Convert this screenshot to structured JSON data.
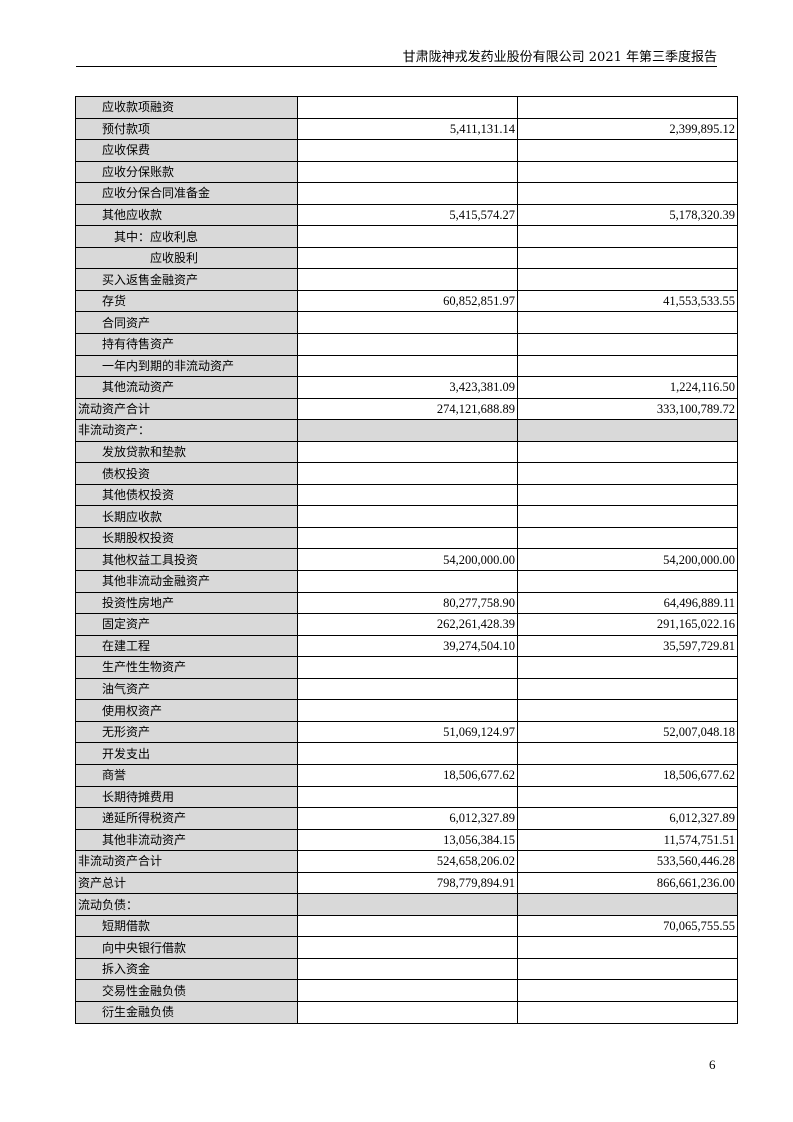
{
  "header": {
    "title": "甘肃陇神戎发药业股份有限公司 2021 年第三季度报告"
  },
  "rows": [
    {
      "label": "应收款项融资",
      "indent": 2,
      "end": "",
      "begin": ""
    },
    {
      "label": "预付款项",
      "indent": 2,
      "end": "5,411,131.14",
      "begin": "2,399,895.12"
    },
    {
      "label": "应收保费",
      "indent": 2,
      "end": "",
      "begin": ""
    },
    {
      "label": "应收分保账款",
      "indent": 2,
      "end": "",
      "begin": ""
    },
    {
      "label": "应收分保合同准备金",
      "indent": 2,
      "end": "",
      "begin": ""
    },
    {
      "label": "其他应收款",
      "indent": 2,
      "end": "5,415,574.27",
      "begin": "5,178,320.39"
    },
    {
      "label": "其中：应收利息",
      "indent": 3,
      "end": "",
      "begin": ""
    },
    {
      "label": "应收股利",
      "indent": 6,
      "end": "",
      "begin": ""
    },
    {
      "label": "买入返售金融资产",
      "indent": 2,
      "end": "",
      "begin": ""
    },
    {
      "label": "存货",
      "indent": 2,
      "end": "60,852,851.97",
      "begin": "41,553,533.55"
    },
    {
      "label": "合同资产",
      "indent": 2,
      "end": "",
      "begin": ""
    },
    {
      "label": "持有待售资产",
      "indent": 2,
      "end": "",
      "begin": ""
    },
    {
      "label": "一年内到期的非流动资产",
      "indent": 2,
      "end": "",
      "begin": ""
    },
    {
      "label": "其他流动资产",
      "indent": 2,
      "end": "3,423,381.09",
      "begin": "1,224,116.50"
    },
    {
      "label": "流动资产合计",
      "indent": 0,
      "end": "274,121,688.89",
      "begin": "333,100,789.72"
    },
    {
      "label": "非流动资产：",
      "indent": 0,
      "end": "",
      "begin": "",
      "section": true
    },
    {
      "label": "发放贷款和垫款",
      "indent": 2,
      "end": "",
      "begin": ""
    },
    {
      "label": "债权投资",
      "indent": 2,
      "end": "",
      "begin": ""
    },
    {
      "label": "其他债权投资",
      "indent": 2,
      "end": "",
      "begin": ""
    },
    {
      "label": "长期应收款",
      "indent": 2,
      "end": "",
      "begin": ""
    },
    {
      "label": "长期股权投资",
      "indent": 2,
      "end": "",
      "begin": ""
    },
    {
      "label": "其他权益工具投资",
      "indent": 2,
      "end": "54,200,000.00",
      "begin": "54,200,000.00"
    },
    {
      "label": "其他非流动金融资产",
      "indent": 2,
      "end": "",
      "begin": ""
    },
    {
      "label": "投资性房地产",
      "indent": 2,
      "end": "80,277,758.90",
      "begin": "64,496,889.11"
    },
    {
      "label": "固定资产",
      "indent": 2,
      "end": "262,261,428.39",
      "begin": "291,165,022.16"
    },
    {
      "label": "在建工程",
      "indent": 2,
      "end": "39,274,504.10",
      "begin": "35,597,729.81"
    },
    {
      "label": "生产性生物资产",
      "indent": 2,
      "end": "",
      "begin": ""
    },
    {
      "label": "油气资产",
      "indent": 2,
      "end": "",
      "begin": ""
    },
    {
      "label": "使用权资产",
      "indent": 2,
      "end": "",
      "begin": ""
    },
    {
      "label": "无形资产",
      "indent": 2,
      "end": "51,069,124.97",
      "begin": "52,007,048.18"
    },
    {
      "label": "开发支出",
      "indent": 2,
      "end": "",
      "begin": ""
    },
    {
      "label": "商誉",
      "indent": 2,
      "end": "18,506,677.62",
      "begin": "18,506,677.62"
    },
    {
      "label": "长期待摊费用",
      "indent": 2,
      "end": "",
      "begin": ""
    },
    {
      "label": "递延所得税资产",
      "indent": 2,
      "end": "6,012,327.89",
      "begin": "6,012,327.89"
    },
    {
      "label": "其他非流动资产",
      "indent": 2,
      "end": "13,056,384.15",
      "begin": "11,574,751.51"
    },
    {
      "label": "非流动资产合计",
      "indent": 0,
      "end": "524,658,206.02",
      "begin": "533,560,446.28"
    },
    {
      "label": "资产总计",
      "indent": 0,
      "end": "798,779,894.91",
      "begin": "866,661,236.00"
    },
    {
      "label": "流动负债：",
      "indent": 0,
      "end": "",
      "begin": "",
      "section": true
    },
    {
      "label": "短期借款",
      "indent": 2,
      "end": "",
      "begin": "70,065,755.55"
    },
    {
      "label": "向中央银行借款",
      "indent": 2,
      "end": "",
      "begin": ""
    },
    {
      "label": "拆入资金",
      "indent": 2,
      "end": "",
      "begin": ""
    },
    {
      "label": "交易性金融负债",
      "indent": 2,
      "end": "",
      "begin": ""
    },
    {
      "label": "衍生金融负债",
      "indent": 2,
      "end": "",
      "begin": ""
    }
  ],
  "footer": {
    "page_number": "6"
  }
}
